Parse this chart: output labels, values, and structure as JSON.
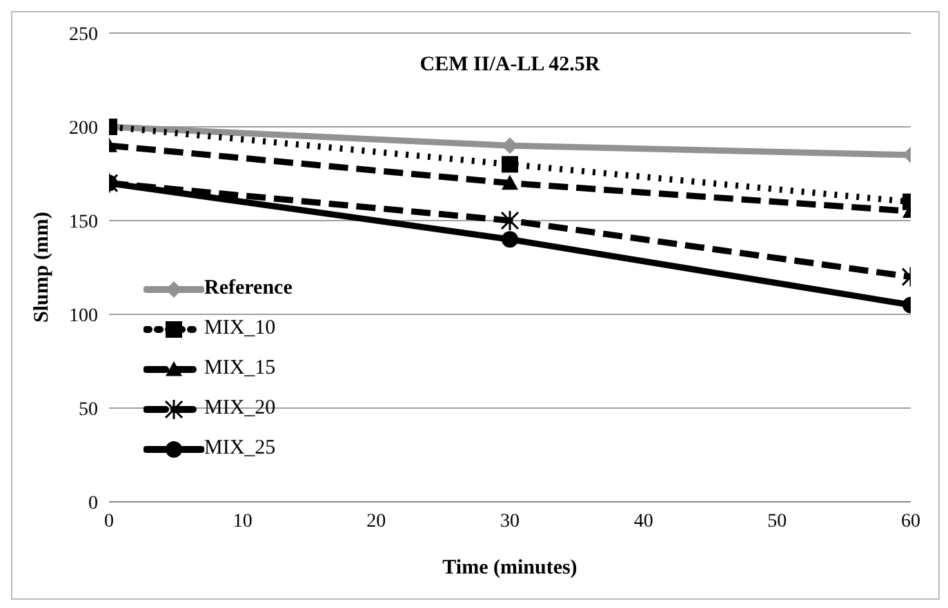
{
  "chart_data": {
    "type": "line",
    "title": "CEM II/A-LL 42.5R",
    "xlabel": "Time (minutes)",
    "ylabel": "Slump (mm)",
    "x": [
      0,
      30,
      60
    ],
    "series": [
      {
        "name": "Reference",
        "color": "#929292",
        "values": [
          200,
          190,
          185
        ],
        "marker": "diamond",
        "line_style": "solid"
      },
      {
        "name": "MIX_10",
        "color": "#000000",
        "values": [
          200,
          180,
          160
        ],
        "marker": "square",
        "line_style": "dotted"
      },
      {
        "name": "MIX_15",
        "color": "#000000",
        "values": [
          190,
          170,
          155
        ],
        "marker": "triangle",
        "line_style": "dashed"
      },
      {
        "name": "MIX_20",
        "color": "#000000",
        "values": [
          170,
          150,
          120
        ],
        "marker": "cross",
        "line_style": "dashed"
      },
      {
        "name": "MIX_25",
        "color": "#000000",
        "values": [
          170,
          140,
          105
        ],
        "marker": "circle",
        "line_style": "solid"
      }
    ],
    "xlim": [
      0,
      60
    ],
    "xticks": [
      0,
      10,
      20,
      30,
      40,
      50,
      60
    ],
    "ylim": [
      0,
      250
    ],
    "yticks": [
      0,
      50,
      100,
      150,
      200,
      250
    ],
    "grid": "y",
    "legend": "left"
  }
}
